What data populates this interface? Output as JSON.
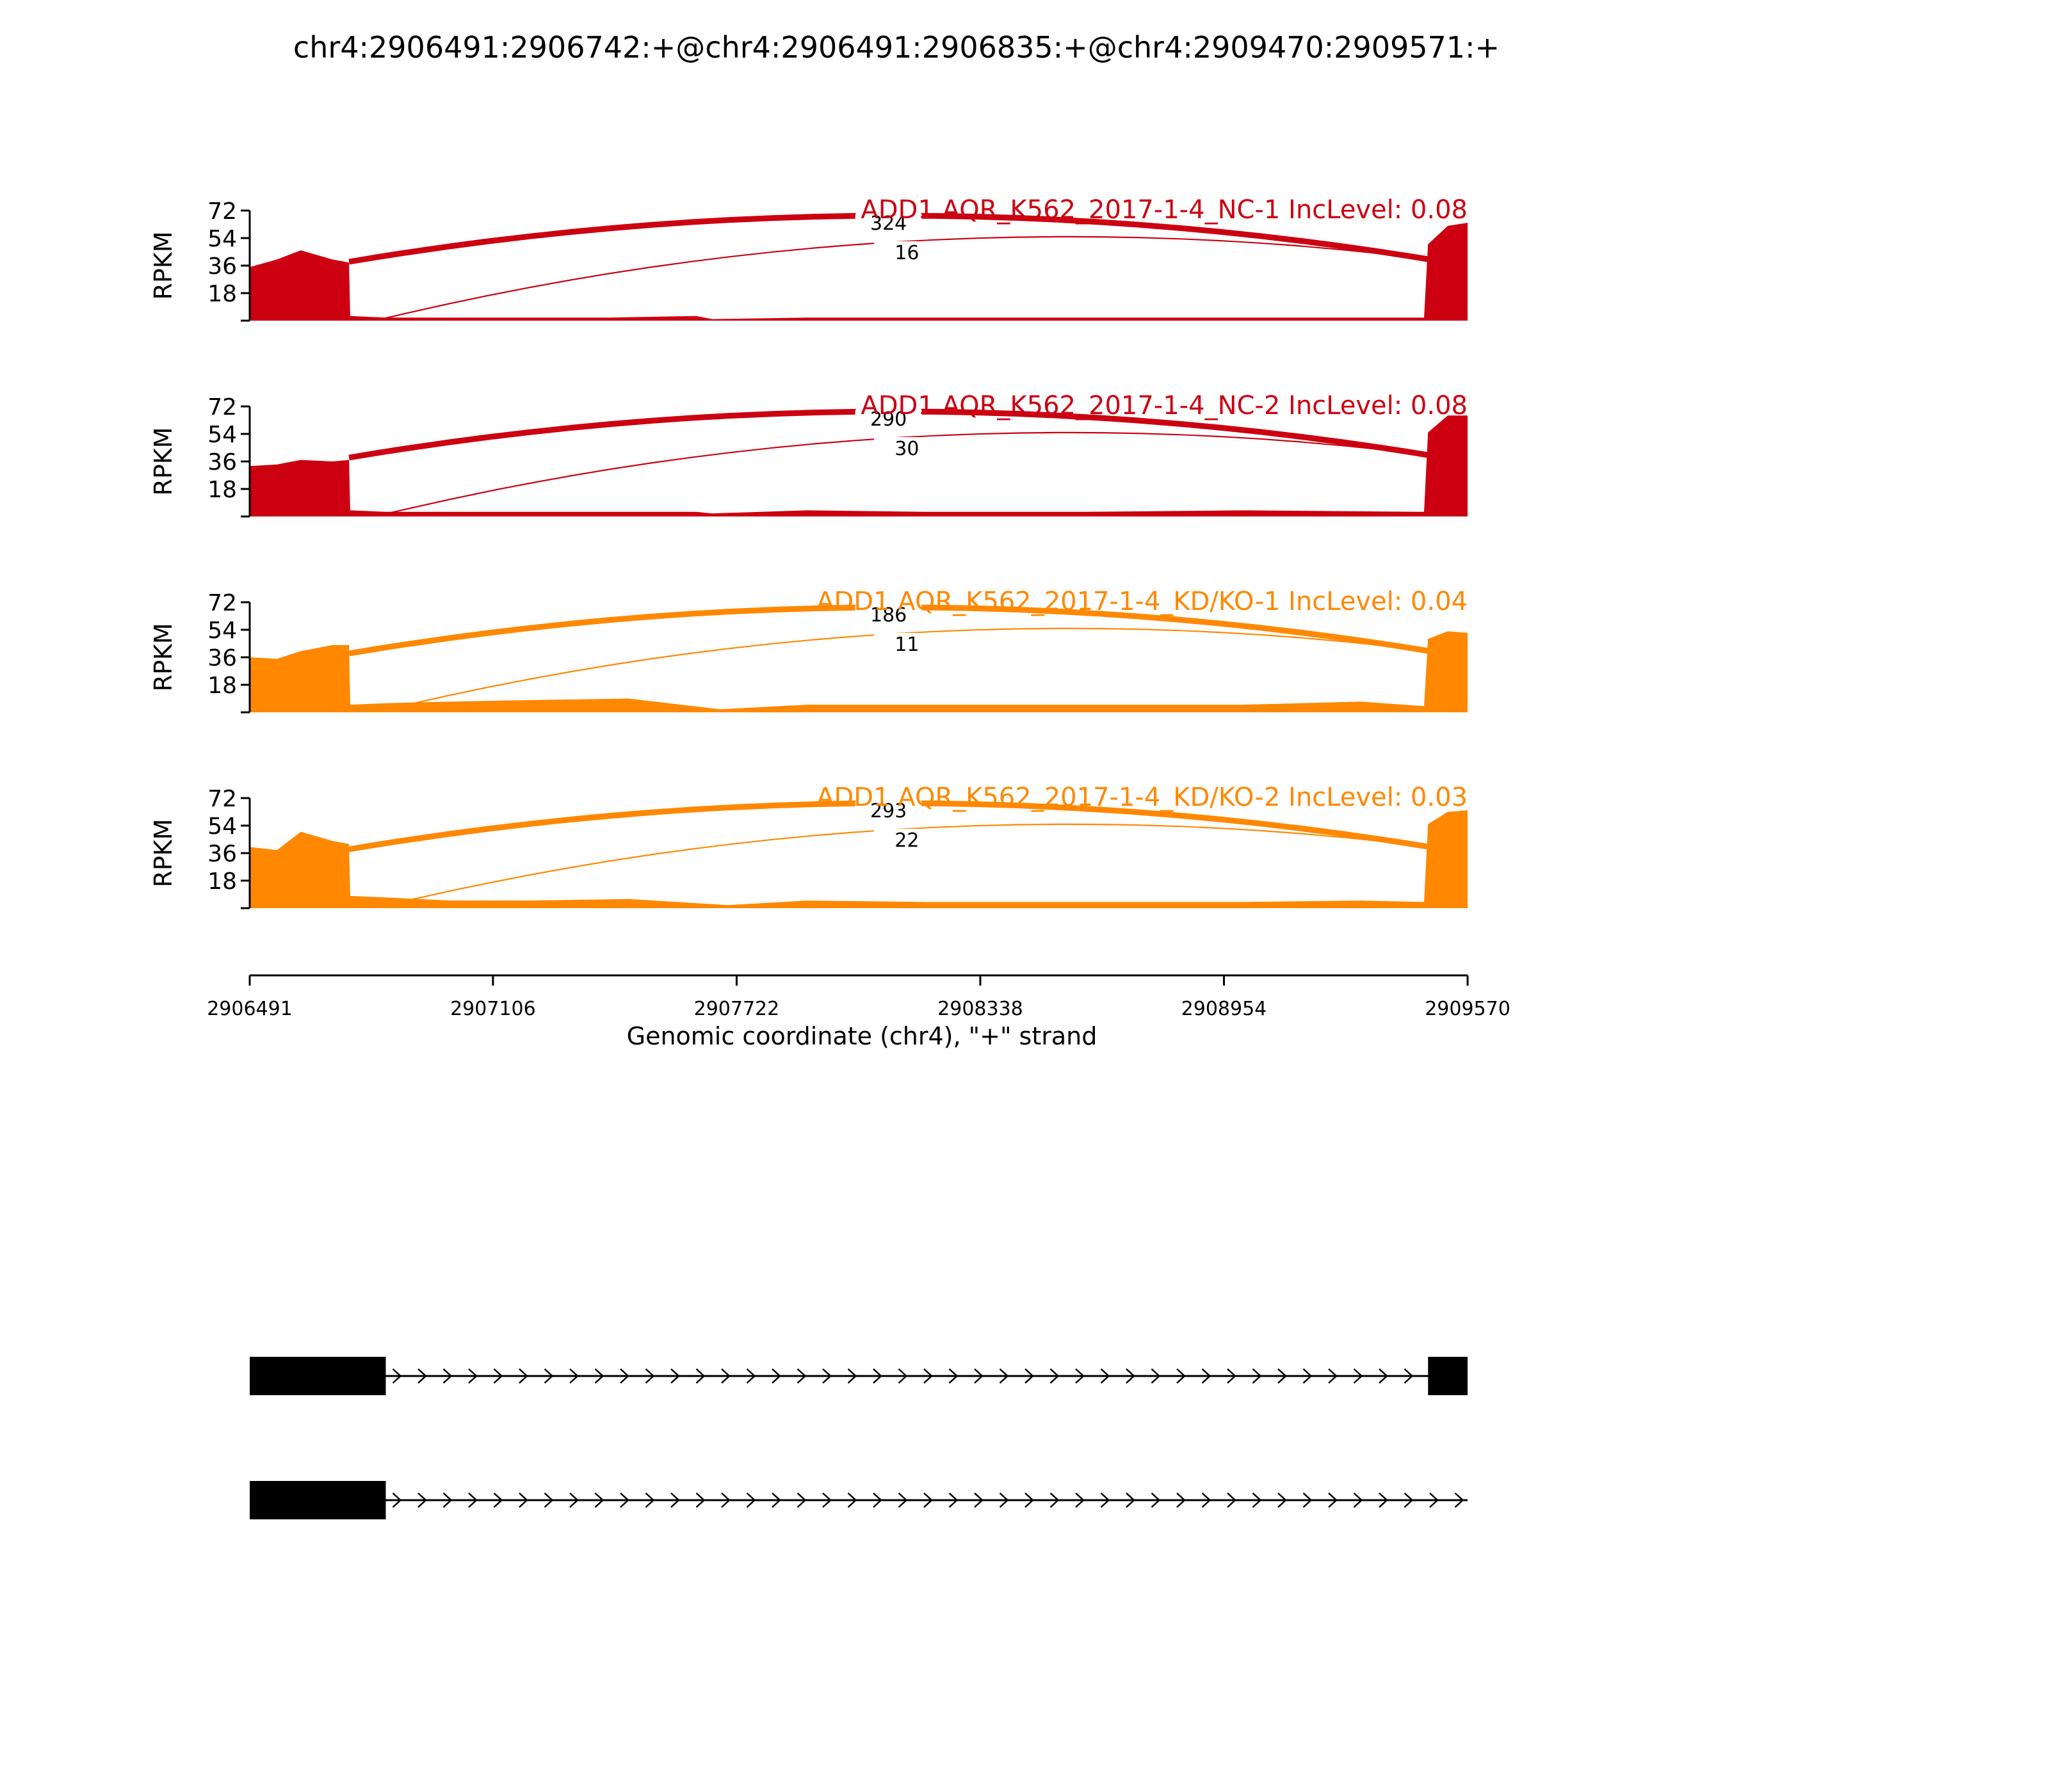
{
  "title": "chr4:2906491:2906742:+@chr4:2906491:2906835:+@chr4:2909470:2909571:+",
  "colors": {
    "nc": "#cc0011",
    "kd": "#ff8800",
    "axis": "#000000",
    "gene": "#000000"
  },
  "chart_data": {
    "type": "area",
    "title": "chr4:2906491:2906742:+@chr4:2906491:2906835:+@chr4:2909470:2909571:+",
    "xlabel": "Genomic coordinate (chr4), \"+\" strand",
    "ylabel": "RPKM",
    "xlim": [
      2906491,
      2909570
    ],
    "x_ticks": [
      "2906491",
      "2907106",
      "2907722",
      "2908338",
      "2908954",
      "2909570"
    ],
    "y_ticks": [
      "18",
      "36",
      "54",
      "72"
    ],
    "ylim": [
      0,
      72
    ],
    "tracks": [
      {
        "label": "ADD1 AQR_K562_2017-1-4_NC-1 IncLevel: 0.08",
        "color": "nc",
        "coverage": [
          {
            "x": 2906491,
            "y": 35
          },
          {
            "x": 2906560,
            "y": 40
          },
          {
            "x": 2906620,
            "y": 46
          },
          {
            "x": 2906700,
            "y": 40
          },
          {
            "x": 2906742,
            "y": 38
          },
          {
            "x": 2906745,
            "y": 3
          },
          {
            "x": 2906835,
            "y": 2
          },
          {
            "x": 2907100,
            "y": 2
          },
          {
            "x": 2907400,
            "y": 2
          },
          {
            "x": 2907620,
            "y": 3
          },
          {
            "x": 2907660,
            "y": 1
          },
          {
            "x": 2907900,
            "y": 2
          },
          {
            "x": 2908200,
            "y": 2
          },
          {
            "x": 2908600,
            "y": 2
          },
          {
            "x": 2909000,
            "y": 2
          },
          {
            "x": 2909460,
            "y": 2
          },
          {
            "x": 2909470,
            "y": 50
          },
          {
            "x": 2909520,
            "y": 62
          },
          {
            "x": 2909570,
            "y": 64
          }
        ],
        "junctions": [
          {
            "from": 2906742,
            "to": 2909470,
            "count": "324"
          },
          {
            "from": 2906835,
            "to": 2909470,
            "count": "16"
          }
        ]
      },
      {
        "label": "ADD1 AQR_K562_2017-1-4_NC-2 IncLevel: 0.08",
        "color": "nc",
        "coverage": [
          {
            "x": 2906491,
            "y": 33
          },
          {
            "x": 2906560,
            "y": 34
          },
          {
            "x": 2906620,
            "y": 37
          },
          {
            "x": 2906700,
            "y": 36
          },
          {
            "x": 2906742,
            "y": 37
          },
          {
            "x": 2906745,
            "y": 4
          },
          {
            "x": 2906835,
            "y": 3
          },
          {
            "x": 2907100,
            "y": 3
          },
          {
            "x": 2907400,
            "y": 3
          },
          {
            "x": 2907620,
            "y": 3
          },
          {
            "x": 2907660,
            "y": 2
          },
          {
            "x": 2907900,
            "y": 4
          },
          {
            "x": 2908200,
            "y": 3
          },
          {
            "x": 2908600,
            "y": 3
          },
          {
            "x": 2909000,
            "y": 4
          },
          {
            "x": 2909460,
            "y": 3
          },
          {
            "x": 2909470,
            "y": 55
          },
          {
            "x": 2909520,
            "y": 66
          },
          {
            "x": 2909570,
            "y": 66
          }
        ],
        "junctions": [
          {
            "from": 2906742,
            "to": 2909470,
            "count": "290"
          },
          {
            "from": 2906835,
            "to": 2909470,
            "count": "30"
          }
        ]
      },
      {
        "label": "ADD1 AQR_K562_2017-1-4_KD/KO-1 IncLevel: 0.04",
        "color": "kd",
        "coverage": [
          {
            "x": 2906491,
            "y": 36
          },
          {
            "x": 2906560,
            "y": 35
          },
          {
            "x": 2906620,
            "y": 40
          },
          {
            "x": 2906700,
            "y": 44
          },
          {
            "x": 2906742,
            "y": 44
          },
          {
            "x": 2906745,
            "y": 5
          },
          {
            "x": 2906835,
            "y": 6
          },
          {
            "x": 2907000,
            "y": 7
          },
          {
            "x": 2907200,
            "y": 8
          },
          {
            "x": 2907450,
            "y": 9
          },
          {
            "x": 2907680,
            "y": 2
          },
          {
            "x": 2907900,
            "y": 5
          },
          {
            "x": 2908200,
            "y": 5
          },
          {
            "x": 2908600,
            "y": 5
          },
          {
            "x": 2909000,
            "y": 5
          },
          {
            "x": 2909300,
            "y": 7
          },
          {
            "x": 2909460,
            "y": 4
          },
          {
            "x": 2909470,
            "y": 48
          },
          {
            "x": 2909520,
            "y": 53
          },
          {
            "x": 2909570,
            "y": 52
          }
        ],
        "junctions": [
          {
            "from": 2906742,
            "to": 2909470,
            "count": "186"
          },
          {
            "from": 2906835,
            "to": 2909470,
            "count": "11"
          }
        ]
      },
      {
        "label": "ADD1 AQR_K562_2017-1-4_KD/KO-2 IncLevel: 0.03",
        "color": "kd",
        "coverage": [
          {
            "x": 2906491,
            "y": 40
          },
          {
            "x": 2906560,
            "y": 38
          },
          {
            "x": 2906620,
            "y": 50
          },
          {
            "x": 2906700,
            "y": 44
          },
          {
            "x": 2906742,
            "y": 42
          },
          {
            "x": 2906745,
            "y": 8
          },
          {
            "x": 2906835,
            "y": 7
          },
          {
            "x": 2907000,
            "y": 5
          },
          {
            "x": 2907200,
            "y": 5
          },
          {
            "x": 2907450,
            "y": 6
          },
          {
            "x": 2907700,
            "y": 2
          },
          {
            "x": 2907900,
            "y": 5
          },
          {
            "x": 2908200,
            "y": 4
          },
          {
            "x": 2908600,
            "y": 4
          },
          {
            "x": 2909000,
            "y": 4
          },
          {
            "x": 2909300,
            "y": 5
          },
          {
            "x": 2909460,
            "y": 4
          },
          {
            "x": 2909470,
            "y": 55
          },
          {
            "x": 2909520,
            "y": 63
          },
          {
            "x": 2909570,
            "y": 64
          }
        ],
        "junctions": [
          {
            "from": 2906742,
            "to": 2909470,
            "count": "293"
          },
          {
            "from": 2906835,
            "to": 2909470,
            "count": "22"
          }
        ]
      }
    ],
    "isoforms": [
      {
        "exons": [
          [
            2906491,
            2906835
          ],
          [
            2909470,
            2909570
          ]
        ],
        "line_end": 2909570
      },
      {
        "exons": [
          [
            2906491,
            2906835
          ]
        ],
        "line_end": 2909570
      }
    ]
  }
}
